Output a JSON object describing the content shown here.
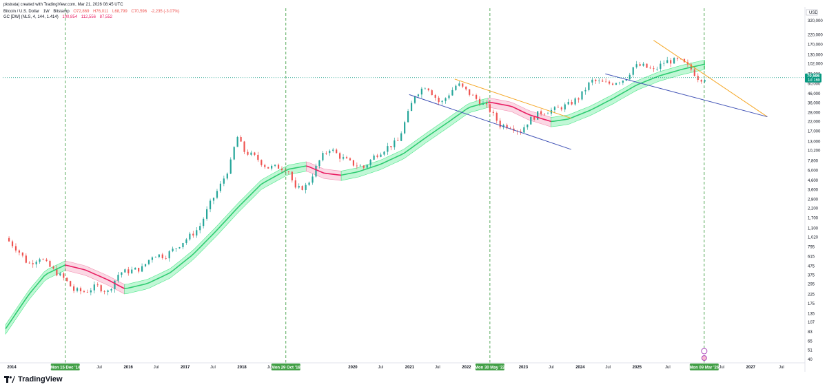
{
  "header": {
    "published": "pkstrata| created with TradingView.com, Mar 21, 2026 08:45 UTC",
    "symbol_line": {
      "name": "Bitcoin / U.S. Dollar",
      "interval": "1W",
      "exchange": "Bitstamp",
      "open": "O72,869",
      "high": "H76,011",
      "low": "L68,799",
      "close": "C70,596",
      "change": "-2,235 (-3.07%)"
    },
    "indicator_line": {
      "name": "GC [DW] (NLS, 4, 144, 1.414)",
      "v1": "100,854",
      "v2": "112,556",
      "v3": "87,552"
    }
  },
  "axis": {
    "currency": "USD",
    "price_label": "70,596",
    "price_sub_label": "1d 16h",
    "y_ticks": [
      "320,000",
      "220,000",
      "170,000",
      "130,000",
      "102,000",
      "78,000",
      "60,000",
      "46,000",
      "36,000",
      "28,000",
      "22,000",
      "17,000",
      "13,000",
      "10,200",
      "7,800",
      "6,000",
      "4,600",
      "3,600",
      "2,800",
      "2,200",
      "1,700",
      "1,300",
      "1,020",
      "795",
      "615",
      "475",
      "375",
      "295",
      "225",
      "175",
      "135",
      "107",
      "83",
      "65",
      "51",
      "40"
    ],
    "x_ticks": [
      "2014",
      "Jul",
      "2016",
      "Jul",
      "2017",
      "Jul",
      "2018",
      "Jul",
      "2020",
      "Jul",
      "2021",
      "Jul",
      "2022",
      "Jul",
      "2023",
      "Jul",
      "2024",
      "Jul",
      "2025",
      "Jul",
      "Jul",
      "2027",
      "Jul"
    ],
    "event_labels": [
      "Mon 15 Dec '14",
      "Mon 29 Oct '18",
      "Mon 30 May '22",
      "Mon 09 Mar '26"
    ]
  },
  "brand": {
    "logo_text": "TradingView",
    "logo_icon": "tradingview-logo-icon"
  },
  "colors": {
    "up": "#26a69a",
    "down": "#ef5350",
    "band_green": "#4ee88a",
    "band_red": "#f48fb1",
    "center_green": "#2ecc71",
    "center_red": "#e91e63",
    "event_line": "#43a047",
    "trend_orange": "#f5a623",
    "trend_blue": "#3f51b5",
    "current_price": "#089981"
  },
  "chart_data": {
    "type": "line",
    "title": "Bitcoin / U.S. Dollar",
    "y_scale": "log",
    "ylim": [
      40,
      320000
    ],
    "x_unit": "year",
    "xlim": [
      2013.85,
      2027.95
    ],
    "series": [
      {
        "name": "Bitcoin / U.S. Dollar",
        "x": [
          2013.9,
          2014.1,
          2014.3,
          2014.5,
          2014.7,
          2014.95,
          2015.1,
          2015.3,
          2015.5,
          2015.7,
          2015.9,
          2016.1,
          2016.3,
          2016.5,
          2016.7,
          2016.9,
          2017.1,
          2017.3,
          2017.5,
          2017.7,
          2017.85,
          2017.97,
          2018.1,
          2018.3,
          2018.5,
          2018.7,
          2018.87,
          2019.0,
          2019.2,
          2019.45,
          2019.6,
          2019.8,
          2020.0,
          2020.2,
          2020.4,
          2020.6,
          2020.8,
          2020.95,
          2021.1,
          2021.3,
          2021.55,
          2021.85,
          2022.1,
          2022.4,
          2022.6,
          2022.8,
          2022.95,
          2023.1,
          2023.3,
          2023.55,
          2023.8,
          2024.0,
          2024.2,
          2024.5,
          2024.8,
          2024.95,
          2025.1,
          2025.3,
          2025.5,
          2025.75,
          2025.95,
          2026.1,
          2026.2
        ],
        "y": [
          1000,
          750,
          500,
          600,
          450,
          330,
          250,
          240,
          280,
          240,
          400,
          420,
          450,
          650,
          620,
          780,
          1000,
          1300,
          2500,
          4300,
          7000,
          15000,
          10000,
          8500,
          6500,
          6600,
          6200,
          3600,
          4000,
          8500,
          10800,
          8500,
          7200,
          6500,
          9000,
          11000,
          13000,
          24000,
          45000,
          58000,
          35000,
          60000,
          44000,
          31000,
          20000,
          19500,
          16800,
          22500,
          28000,
          30000,
          34500,
          42000,
          65000,
          60000,
          68000,
          95000,
          97000,
          85000,
          108000,
          112000,
          90000,
          68000,
          70596
        ]
      },
      {
        "name": "GC [DW] (NLS, 4, 144, 1.414)",
        "x": [
          2013.9,
          2014.3,
          2014.6,
          2014.95,
          2015.3,
          2015.7,
          2016.0,
          2016.4,
          2016.8,
          2017.2,
          2017.6,
          2018.0,
          2018.4,
          2018.87,
          2019.2,
          2019.5,
          2019.8,
          2020.1,
          2020.5,
          2020.9,
          2021.3,
          2021.7,
          2022.05,
          2022.4,
          2022.8,
          2023.1,
          2023.5,
          2023.8,
          2024.2,
          2024.6,
          2025.0,
          2025.4,
          2025.8,
          2026.2
        ],
        "y": [
          90,
          220,
          380,
          490,
          430,
          330,
          260,
          300,
          400,
          650,
          1200,
          2300,
          4200,
          6200,
          6800,
          5600,
          5300,
          5800,
          7100,
          9400,
          14500,
          22000,
          32000,
          37000,
          33000,
          26500,
          22000,
          23500,
          30000,
          41000,
          58000,
          74000,
          88000,
          100854
        ]
      }
    ],
    "bands": {
      "upper": "112,556",
      "lower": "87,552"
    },
    "event_lines": [
      {
        "label": "Mon 15 Dec '14",
        "x": 2014.95
      },
      {
        "label": "Mon 29 Oct '18",
        "x": 2018.83
      },
      {
        "label": "Mon 30 May '22",
        "x": 2022.42
      },
      {
        "label": "Mon 09 Mar '26",
        "x": 2026.19
      }
    ],
    "trend_lines": [
      {
        "color": "orange",
        "from": [
          2021.8,
          68000
        ],
        "to": [
          2023.85,
          24000
        ]
      },
      {
        "color": "blue",
        "from": [
          2021.0,
          45000
        ],
        "to": [
          2023.85,
          10500
        ]
      },
      {
        "color": "orange",
        "from": [
          2025.3,
          190000
        ],
        "to": [
          2027.3,
          25000
        ]
      },
      {
        "color": "blue",
        "from": [
          2024.45,
          78000
        ],
        "to": [
          2027.3,
          25000
        ]
      }
    ],
    "current_price": 70596,
    "legend": "top-left",
    "grid": false
  }
}
